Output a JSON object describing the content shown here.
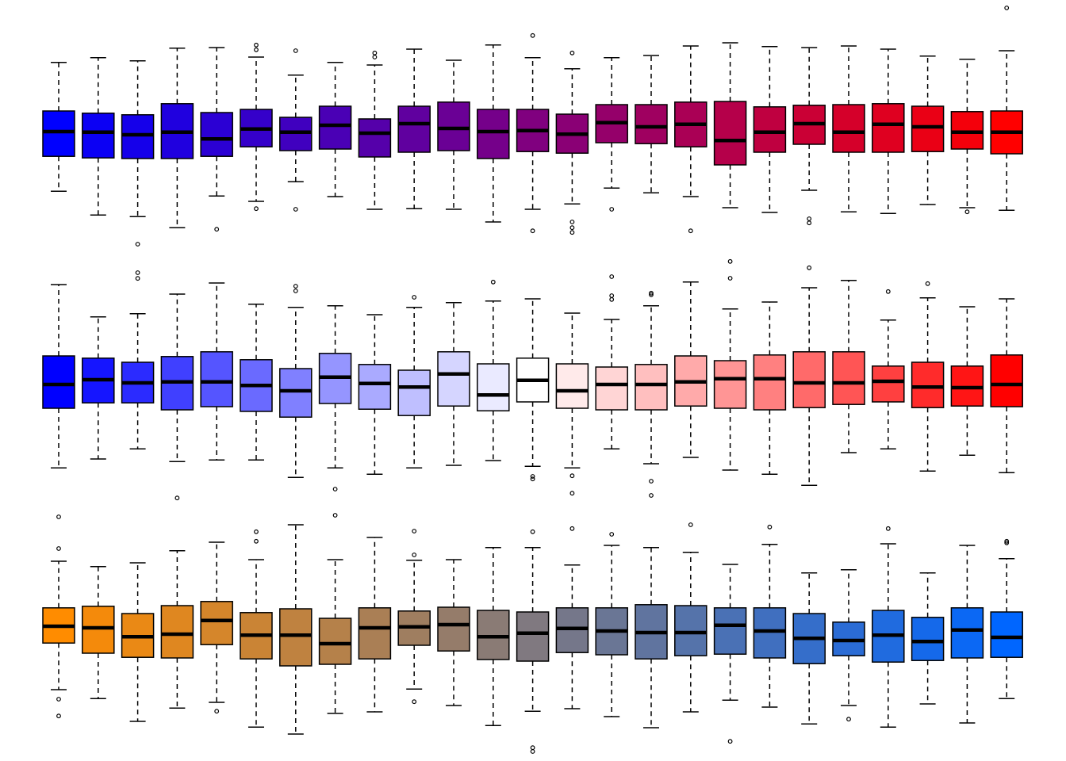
{
  "chart_data": [
    {
      "type": "boxplot",
      "ylim": [
        -4.6,
        4.0
      ],
      "boxes": [
        {
          "color": "#0000FF",
          "stats": [
            -1.83,
            -0.73,
            0.05,
            0.7,
            2.23
          ]
        },
        {
          "color": "#0B00F4",
          "stats": [
            -2.58,
            -0.78,
            0.03,
            0.63,
            2.38
          ]
        },
        {
          "color": "#1500EA",
          "stats": [
            -2.63,
            -0.8,
            -0.05,
            0.58,
            2.28
          ],
          "outliers": [
            -3.5,
            -4.4,
            -4.58
          ]
        },
        {
          "color": "#2000DF",
          "stats": [
            -2.98,
            -0.8,
            0.03,
            0.93,
            2.68
          ]
        },
        {
          "color": "#2B00D4",
          "stats": [
            -1.98,
            -0.73,
            -0.18,
            0.65,
            2.7
          ],
          "outliers": [
            -3.03
          ]
        },
        {
          "color": "#3500CA",
          "stats": [
            -2.15,
            -0.43,
            0.13,
            0.75,
            2.4
          ],
          "outliers": [
            2.78,
            2.63,
            -2.38
          ]
        },
        {
          "color": "#4000BF",
          "stats": [
            -1.53,
            -0.55,
            0.03,
            0.5,
            1.83
          ],
          "outliers": [
            2.6,
            -2.4
          ]
        },
        {
          "color": "#4A00B5",
          "stats": [
            -2.0,
            -0.5,
            0.25,
            0.85,
            2.23
          ]
        },
        {
          "color": "#5500AA",
          "stats": [
            -2.4,
            -0.75,
            0,
            0.45,
            2.15
          ],
          "outliers": [
            2.53,
            2.4
          ]
        },
        {
          "color": "#60009F",
          "stats": [
            -2.38,
            -0.6,
            0.3,
            0.85,
            2.65
          ]
        },
        {
          "color": "#6A0095",
          "stats": [
            -2.4,
            -0.55,
            0.15,
            0.98,
            2.3
          ]
        },
        {
          "color": "#75008A",
          "stats": [
            -2.8,
            -0.8,
            0.05,
            0.75,
            2.78
          ]
        },
        {
          "color": "#80007F",
          "stats": [
            -2.4,
            -0.58,
            0.08,
            0.75,
            2.38
          ],
          "outliers": [
            3.08,
            -3.08
          ]
        },
        {
          "color": "#8A0075",
          "stats": [
            -2.23,
            -0.63,
            -0.03,
            0.6,
            2.03
          ],
          "outliers": [
            2.53,
            -2.8,
            -2.98,
            -3.13
          ]
        },
        {
          "color": "#95006A",
          "stats": [
            -1.73,
            -0.3,
            0.33,
            0.9,
            2.38
          ],
          "outliers": [
            -2.4
          ]
        },
        {
          "color": "#9F0060",
          "stats": [
            -1.88,
            -0.33,
            0.2,
            0.9,
            2.45
          ]
        },
        {
          "color": "#AA0055",
          "stats": [
            -2.0,
            -0.43,
            0.28,
            0.98,
            2.75
          ],
          "outliers": [
            -3.08
          ]
        },
        {
          "color": "#B5004A",
          "stats": [
            -2.35,
            -1.0,
            -0.23,
            1.0,
            2.85
          ]
        },
        {
          "color": "#BF0040",
          "stats": [
            -2.5,
            -0.6,
            0.03,
            0.83,
            2.73
          ]
        },
        {
          "color": "#CA0035",
          "stats": [
            -1.8,
            -0.35,
            0.3,
            0.88,
            2.7
          ],
          "outliers": [
            -2.7,
            -2.83
          ]
        },
        {
          "color": "#D5002A",
          "stats": [
            -2.48,
            -0.6,
            0.03,
            0.9,
            2.75
          ]
        },
        {
          "color": "#DF0020",
          "stats": [
            -2.53,
            -0.6,
            0.28,
            0.93,
            2.65
          ]
        },
        {
          "color": "#EA0015",
          "stats": [
            -2.25,
            -0.58,
            0.2,
            0.85,
            2.43
          ]
        },
        {
          "color": "#F4000B",
          "stats": [
            -2.35,
            -0.5,
            0.03,
            0.68,
            2.33
          ],
          "outliers": [
            -2.48
          ]
        },
        {
          "color": "#FF0000",
          "stats": [
            -2.43,
            -0.65,
            0.03,
            0.7,
            2.6
          ],
          "outliers": [
            3.95
          ]
        }
      ]
    },
    {
      "type": "boxplot",
      "ylim": [
        -3.6,
        4.0
      ],
      "boxes": [
        {
          "color": "#0000FF",
          "stats": [
            -2.63,
            -0.75,
            0,
            0.9,
            3.15
          ]
        },
        {
          "color": "#1515FF",
          "stats": [
            -2.35,
            -0.58,
            0.15,
            0.83,
            2.13
          ]
        },
        {
          "color": "#2B2BFF",
          "stats": [
            -2.03,
            -0.58,
            0.05,
            0.7,
            2.23
          ]
        },
        {
          "color": "#4040FF",
          "stats": [
            -2.43,
            -0.8,
            0.08,
            0.88,
            2.85
          ],
          "outliers": [
            -3.58
          ]
        },
        {
          "color": "#5555FF",
          "stats": [
            -2.38,
            -0.7,
            0.08,
            1.03,
            3.2
          ]
        },
        {
          "color": "#6A6AFF",
          "stats": [
            -2.38,
            -0.85,
            -0.03,
            0.78,
            2.53
          ]
        },
        {
          "color": "#8080FF",
          "stats": [
            -2.93,
            -1.03,
            -0.2,
            0.5,
            2.43
          ],
          "outliers": [
            3.1,
            2.95
          ]
        },
        {
          "color": "#9595FF",
          "stats": [
            -2.63,
            -0.6,
            0.23,
            0.98,
            2.48
          ],
          "outliers": [
            -3.3
          ]
        },
        {
          "color": "#AAAAFF",
          "stats": [
            -2.83,
            -0.78,
            0.03,
            0.63,
            2.2
          ]
        },
        {
          "color": "#BFBFFF",
          "stats": [
            -2.63,
            -0.98,
            -0.08,
            0.45,
            2.43
          ],
          "outliers": [
            2.75
          ]
        },
        {
          "color": "#D5D5FF",
          "stats": [
            -2.55,
            -0.68,
            0.33,
            1.03,
            2.58
          ]
        },
        {
          "color": "#EAEAFF",
          "stats": [
            -2.4,
            -0.83,
            -0.33,
            0.65,
            2.63
          ],
          "outliers": [
            3.23
          ]
        },
        {
          "color": "#FFFFFF",
          "stats": [
            -2.58,
            -0.55,
            0.13,
            0.83,
            2.7
          ],
          "outliers": [
            -2.9,
            -2.98
          ]
        },
        {
          "color": "#FFEAEA",
          "stats": [
            -2.63,
            -0.75,
            -0.2,
            0.65,
            2.25
          ],
          "outliers": [
            -2.88,
            -3.43
          ]
        },
        {
          "color": "#FFD5D5",
          "stats": [
            -2.03,
            -0.8,
            0,
            0.55,
            2.05
          ],
          "outliers": [
            3.4,
            2.8,
            2.68
          ]
        },
        {
          "color": "#FFBFBF",
          "stats": [
            -2.5,
            -0.8,
            0,
            0.63,
            2.48
          ],
          "outliers": [
            2.88,
            2.83,
            -3.05,
            -3.5
          ]
        },
        {
          "color": "#FFAAAA",
          "stats": [
            -2.3,
            -0.68,
            0.08,
            0.9,
            3.23
          ]
        },
        {
          "color": "#FF9595",
          "stats": [
            -2.7,
            -0.75,
            0.18,
            0.75,
            2.38
          ],
          "outliers": [
            3.88,
            3.35
          ]
        },
        {
          "color": "#FF8080",
          "stats": [
            -2.83,
            -0.8,
            0.18,
            0.93,
            2.6
          ]
        },
        {
          "color": "#FF6A6A",
          "stats": [
            -3.18,
            -0.73,
            0.05,
            1.03,
            3.05
          ],
          "outliers": [
            3.68
          ]
        },
        {
          "color": "#FF5555",
          "stats": [
            -2.15,
            -0.63,
            0.05,
            1.03,
            3.28
          ]
        },
        {
          "color": "#FF4040",
          "stats": [
            -2.03,
            -0.55,
            0.1,
            0.58,
            2.03
          ],
          "outliers": [
            2.93
          ]
        },
        {
          "color": "#FF2B2B",
          "stats": [
            -2.73,
            -0.73,
            -0.08,
            0.7,
            2.73
          ],
          "outliers": [
            3.18
          ]
        },
        {
          "color": "#FF1515",
          "stats": [
            -2.23,
            -0.68,
            -0.1,
            0.58,
            2.45
          ]
        },
        {
          "color": "#FF0000",
          "stats": [
            -2.78,
            -0.7,
            0,
            0.93,
            2.7
          ]
        }
      ]
    },
    {
      "type": "boxplot",
      "ylim": [
        -3.8,
        3.8
      ],
      "boxes": [
        {
          "color": "#FF8C00",
          "stats": [
            -1.75,
            -0.28,
            0.25,
            0.83,
            2.3
          ],
          "outliers": [
            3.7,
            2.7,
            -2.05,
            -2.58
          ]
        },
        {
          "color": "#F48A0B",
          "stats": [
            -2.03,
            -0.6,
            0.2,
            0.88,
            2.13
          ]
        },
        {
          "color": "#EA8915",
          "stats": [
            -2.75,
            -0.73,
            -0.08,
            0.65,
            2.25
          ]
        },
        {
          "color": "#DF8720",
          "stats": [
            -2.33,
            -0.75,
            0,
            0.9,
            2.63
          ]
        },
        {
          "color": "#D5862B",
          "stats": [
            -2.15,
            -0.33,
            0.43,
            1.03,
            2.9
          ],
          "outliers": [
            -2.43
          ]
        },
        {
          "color": "#CA8435",
          "stats": [
            -2.93,
            -0.78,
            -0.03,
            0.68,
            2.35
          ],
          "outliers": [
            3.23,
            2.93
          ]
        },
        {
          "color": "#BF8240",
          "stats": [
            -3.15,
            -1.0,
            -0.03,
            0.8,
            3.45
          ]
        },
        {
          "color": "#B5814A",
          "stats": [
            -2.5,
            -0.95,
            -0.3,
            0.5,
            2.35
          ],
          "outliers": [
            3.75
          ]
        },
        {
          "color": "#AA7F55",
          "stats": [
            -2.45,
            -0.78,
            0.2,
            0.83,
            3.05
          ]
        },
        {
          "color": "#9F7E60",
          "stats": [
            -1.73,
            -0.35,
            0.23,
            0.73,
            2.33
          ],
          "outliers": [
            3.25,
            2.5,
            -2.13
          ]
        },
        {
          "color": "#957C6A",
          "stats": [
            -2.25,
            -0.53,
            0.3,
            0.85,
            2.35
          ]
        },
        {
          "color": "#8A7B75",
          "stats": [
            -2.88,
            -0.8,
            -0.08,
            0.75,
            2.73
          ]
        },
        {
          "color": "#807980",
          "stats": [
            -2.43,
            -0.85,
            0.03,
            0.7,
            2.73
          ],
          "outliers": [
            3.23,
            -3.58,
            -3.7
          ]
        },
        {
          "color": "#75778A",
          "stats": [
            -2.35,
            -0.58,
            0.18,
            0.83,
            2.18
          ],
          "outliers": [
            3.33
          ]
        },
        {
          "color": "#6A7695",
          "stats": [
            -2.6,
            -0.65,
            0.1,
            0.83,
            2.8
          ],
          "outliers": [
            3.15
          ]
        },
        {
          "color": "#60749F",
          "stats": [
            -2.95,
            -0.78,
            0.05,
            0.93,
            2.73
          ]
        },
        {
          "color": "#5573AA",
          "stats": [
            -2.45,
            -0.68,
            0.05,
            0.9,
            2.58
          ],
          "outliers": [
            3.45
          ]
        },
        {
          "color": "#4A71B5",
          "stats": [
            -2.08,
            -0.63,
            0.28,
            0.83,
            2.2
          ],
          "outliers": [
            -3.38
          ]
        },
        {
          "color": "#406FBF",
          "stats": [
            -2.3,
            -0.75,
            0.1,
            0.83,
            2.83
          ],
          "outliers": [
            3.38
          ]
        },
        {
          "color": "#356ECA",
          "stats": [
            -2.83,
            -0.93,
            -0.13,
            0.65,
            1.93
          ]
        },
        {
          "color": "#2B6CD5",
          "stats": [
            -2.25,
            -0.68,
            -0.2,
            0.38,
            2.03
          ],
          "outliers": [
            -2.68
          ]
        },
        {
          "color": "#206BDF",
          "stats": [
            -2.93,
            -0.88,
            -0.03,
            0.75,
            2.85
          ],
          "outliers": [
            3.33
          ]
        },
        {
          "color": "#1569EA",
          "stats": [
            -2.2,
            -0.83,
            -0.23,
            0.53,
            1.93
          ]
        },
        {
          "color": "#0B68F4",
          "stats": [
            -2.8,
            -0.75,
            0.13,
            0.83,
            2.8
          ]
        },
        {
          "color": "#0066FF",
          "stats": [
            -2.03,
            -0.73,
            -0.1,
            0.7,
            2.38
          ],
          "outliers": [
            2.93,
            2.88
          ]
        }
      ]
    }
  ]
}
